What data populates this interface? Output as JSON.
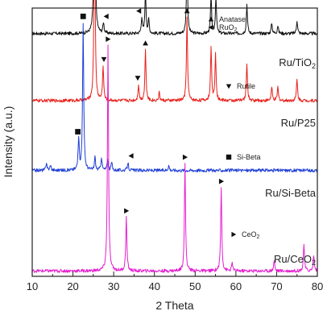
{
  "chart_data": {
    "type": "line",
    "xlabel": "2 Theta",
    "ylabel": "Intensity (a.u.)",
    "xlim": [
      10,
      80
    ],
    "x_ticks": [
      "10",
      "20",
      "30",
      "40",
      "50",
      "60",
      "70",
      "80"
    ],
    "y_ticks_shown": false,
    "grid": false,
    "series": [
      {
        "name": "Ru/TiO2",
        "label_main": "Ru/TiO",
        "label_sub": "2",
        "color": "#111111",
        "baseline": 0.905,
        "peaks": [
          [
            25.3,
            0.87
          ],
          [
            27.5,
            0.04
          ],
          [
            36.9,
            0.06
          ],
          [
            37.8,
            0.16
          ],
          [
            38.6,
            0.05
          ],
          [
            48.0,
            0.3
          ],
          [
            53.9,
            0.14
          ],
          [
            55.1,
            0.14
          ],
          [
            62.7,
            0.11
          ],
          [
            68.8,
            0.04
          ],
          [
            70.3,
            0.03
          ],
          [
            75.0,
            0.05
          ]
        ],
        "markers": [
          {
            "x": 25.6,
            "shape": "triangle-up"
          },
          {
            "x": 28.2,
            "shape": "triangle-left"
          },
          {
            "x": 36.2,
            "shape": "triangle-left"
          },
          {
            "x": 38.0,
            "shape": "triangle-up"
          },
          {
            "x": 48.0,
            "shape": "triangle-up"
          }
        ]
      },
      {
        "name": "Ru/P25",
        "label_main": "Ru/P25",
        "label_sub": "",
        "color": "#e8211b",
        "baseline": 0.655,
        "peaks": [
          [
            25.3,
            0.78
          ],
          [
            27.4,
            0.13
          ],
          [
            36.1,
            0.06
          ],
          [
            37.8,
            0.19
          ],
          [
            41.2,
            0.03
          ],
          [
            48.0,
            0.31
          ],
          [
            53.9,
            0.2
          ],
          [
            55.0,
            0.18
          ],
          [
            62.7,
            0.14
          ],
          [
            68.8,
            0.05
          ],
          [
            70.3,
            0.05
          ],
          [
            75.0,
            0.08
          ]
        ],
        "markers": [
          {
            "x": 25.3,
            "shape": "triangle-up"
          },
          {
            "x": 27.6,
            "shape": "triangle-down"
          },
          {
            "x": 35.9,
            "shape": "triangle-down"
          },
          {
            "x": 37.8,
            "shape": "triangle-up"
          },
          {
            "x": 48.0,
            "shape": "triangle-up"
          }
        ]
      },
      {
        "name": "Ru/Si-Beta",
        "label_main": "Ru/Si-Beta",
        "label_sub": "",
        "color": "#1f3fd6",
        "baseline": 0.395,
        "peaks": [
          [
            13.5,
            0.03
          ],
          [
            14.5,
            0.02
          ],
          [
            21.4,
            0.12
          ],
          [
            22.5,
            0.55
          ],
          [
            25.4,
            0.05
          ],
          [
            27.0,
            0.05
          ],
          [
            28.5,
            0.04
          ],
          [
            29.5,
            0.03
          ],
          [
            33.5,
            0.03
          ],
          [
            43.5,
            0.02
          ]
        ],
        "markers": [
          {
            "x": 22.5,
            "shape": "square"
          },
          {
            "x": 21.2,
            "shape": "square"
          },
          {
            "x": 34.3,
            "shape": "triangle-left"
          }
        ]
      },
      {
        "name": "Ru/CeO2",
        "label_main": "Ru/CeO",
        "label_sub": "2",
        "color": "#e41fd0",
        "baseline": 0.02,
        "peaks": [
          [
            28.6,
            0.84
          ],
          [
            33.1,
            0.2
          ],
          [
            47.5,
            0.4
          ],
          [
            56.4,
            0.31
          ],
          [
            59.1,
            0.03
          ],
          [
            69.4,
            0.04
          ],
          [
            76.7,
            0.1
          ],
          [
            79.1,
            0.06
          ]
        ],
        "markers": [
          {
            "x": 28.6,
            "shape": "triangle-right"
          },
          {
            "x": 33.1,
            "shape": "triangle-right"
          },
          {
            "x": 47.5,
            "shape": "triangle-right"
          },
          {
            "x": 56.4,
            "shape": "triangle-right"
          }
        ]
      }
    ],
    "legend": [
      {
        "shape": "triangle-up",
        "text": "Anatase",
        "sub": ""
      },
      {
        "shape": "triangle-left",
        "text": "RuO",
        "sub": "2"
      },
      {
        "shape": "triangle-down",
        "text": "Rutile",
        "sub": ""
      },
      {
        "shape": "square",
        "text": "Si-Beta",
        "sub": ""
      },
      {
        "shape": "triangle-right",
        "text": "CeO",
        "sub": "2"
      }
    ]
  }
}
